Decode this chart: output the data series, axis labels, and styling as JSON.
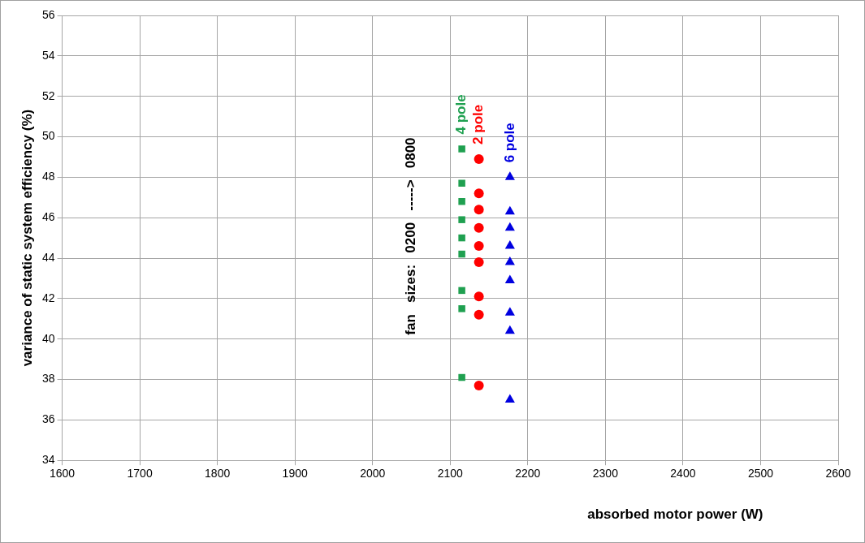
{
  "chart_data": {
    "type": "scatter",
    "xlabel": "absorbed motor power (W)",
    "ylabel": "variance of static system efficiency (%)",
    "xlim": [
      1600,
      2600
    ],
    "xticks": [
      1600,
      1700,
      1800,
      1900,
      2000,
      2100,
      2200,
      2300,
      2400,
      2500,
      2600
    ],
    "ylim": [
      34,
      56
    ],
    "yticks": [
      34,
      36,
      38,
      40,
      42,
      44,
      46,
      48,
      50,
      52,
      54,
      56
    ],
    "grid": true,
    "legend": false,
    "annotations": [
      "fan   sizes:   0200   ----->   0800"
    ],
    "series": [
      {
        "name": "4 pole",
        "color": "#1fa050",
        "marker": "square",
        "x": [
          2115,
          2115,
          2115,
          2115,
          2115,
          2115,
          2115,
          2115,
          2115
        ],
        "values": [
          49.4,
          47.7,
          46.8,
          45.9,
          45.0,
          44.2,
          42.4,
          41.5,
          38.1
        ]
      },
      {
        "name": "2 pole",
        "color": "#ff0000",
        "marker": "circle",
        "x": [
          2137,
          2137,
          2137,
          2137,
          2137,
          2137,
          2137,
          2137,
          2137
        ],
        "values": [
          48.9,
          47.2,
          46.4,
          45.5,
          44.6,
          43.8,
          42.1,
          41.2,
          37.7
        ]
      },
      {
        "name": "6 pole",
        "color": "#0000e0",
        "marker": "triangle",
        "x": [
          2177,
          2177,
          2177,
          2177,
          2177,
          2177,
          2177,
          2177,
          2177
        ],
        "values": [
          48.0,
          46.3,
          45.5,
          44.6,
          43.8,
          42.9,
          41.3,
          40.4,
          37.0
        ]
      }
    ]
  }
}
